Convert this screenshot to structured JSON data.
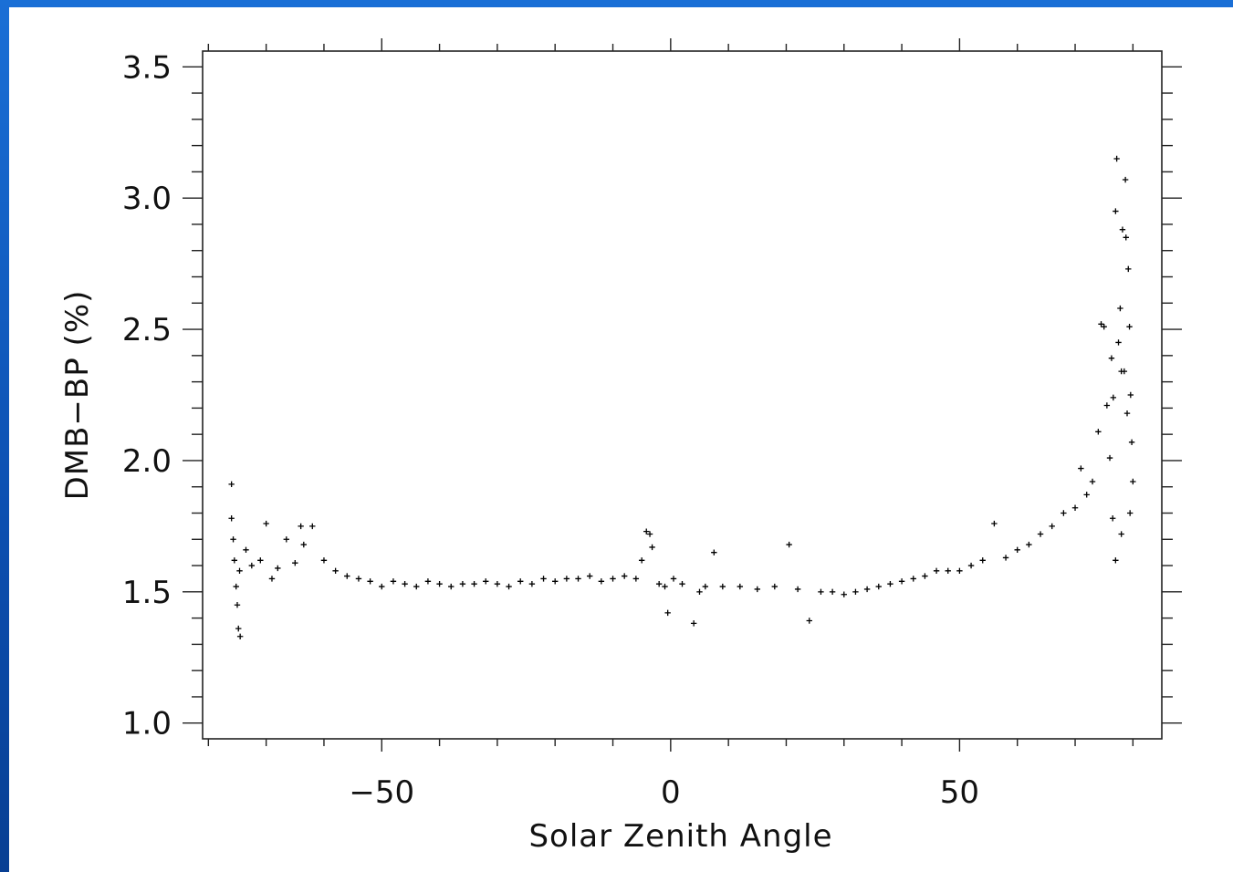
{
  "chart_data": {
    "type": "scatter",
    "title": "",
    "xlabel": "Solar Zenith Angle",
    "ylabel": "DMB−BP (%)",
    "xlim": [
      -81,
      85
    ],
    "ylim": [
      0.94,
      3.56
    ],
    "x_ticks": [
      -50,
      0,
      50
    ],
    "x_tick_labels": [
      "−50",
      "0",
      "50"
    ],
    "y_ticks": [
      1.0,
      1.5,
      2.0,
      2.5,
      3.0,
      3.5
    ],
    "y_tick_labels": [
      "1.0",
      "1.5",
      "2.0",
      "2.5",
      "3.0",
      "3.5"
    ],
    "marker": "plus",
    "marker_color": "#000000",
    "grid": false,
    "legend": "none",
    "series": [
      {
        "points": [
          [
            -76,
            1.91
          ],
          [
            -76,
            1.78
          ],
          [
            -75.5,
            1.62
          ],
          [
            -75,
            1.45
          ],
          [
            -74.8,
            1.36
          ],
          [
            -74.5,
            1.33
          ],
          [
            -75.7,
            1.7
          ],
          [
            -75.2,
            1.52
          ],
          [
            -74.6,
            1.58
          ],
          [
            -73.5,
            1.66
          ],
          [
            -72.5,
            1.6
          ],
          [
            -71,
            1.62
          ],
          [
            -70,
            1.76
          ],
          [
            -69,
            1.55
          ],
          [
            -68,
            1.59
          ],
          [
            -66.5,
            1.7
          ],
          [
            -65,
            1.61
          ],
          [
            -64,
            1.75
          ],
          [
            -63.5,
            1.68
          ],
          [
            -62,
            1.75
          ],
          [
            -60,
            1.62
          ],
          [
            -58,
            1.58
          ],
          [
            -56,
            1.56
          ],
          [
            -54,
            1.55
          ],
          [
            -52,
            1.54
          ],
          [
            -50,
            1.52
          ],
          [
            -48,
            1.54
          ],
          [
            -46,
            1.53
          ],
          [
            -44,
            1.52
          ],
          [
            -42,
            1.54
          ],
          [
            -40,
            1.53
          ],
          [
            -38,
            1.52
          ],
          [
            -36,
            1.53
          ],
          [
            -34,
            1.53
          ],
          [
            -32,
            1.54
          ],
          [
            -30,
            1.53
          ],
          [
            -28,
            1.52
          ],
          [
            -26,
            1.54
          ],
          [
            -24,
            1.53
          ],
          [
            -22,
            1.55
          ],
          [
            -20,
            1.54
          ],
          [
            -18,
            1.55
          ],
          [
            -16,
            1.55
          ],
          [
            -14,
            1.56
          ],
          [
            -12,
            1.54
          ],
          [
            -10,
            1.55
          ],
          [
            -8,
            1.56
          ],
          [
            -6,
            1.55
          ],
          [
            -4.2,
            1.73
          ],
          [
            -3.6,
            1.72
          ],
          [
            -3.2,
            1.67
          ],
          [
            -5,
            1.62
          ],
          [
            -2,
            1.53
          ],
          [
            -1,
            1.52
          ],
          [
            -0.5,
            1.42
          ],
          [
            0.5,
            1.55
          ],
          [
            2,
            1.53
          ],
          [
            4,
            1.38
          ],
          [
            5,
            1.5
          ],
          [
            6,
            1.52
          ],
          [
            7.5,
            1.65
          ],
          [
            9,
            1.52
          ],
          [
            12,
            1.52
          ],
          [
            15,
            1.51
          ],
          [
            18,
            1.52
          ],
          [
            20.5,
            1.68
          ],
          [
            22,
            1.51
          ],
          [
            24,
            1.39
          ],
          [
            26,
            1.5
          ],
          [
            28,
            1.5
          ],
          [
            30,
            1.49
          ],
          [
            32,
            1.5
          ],
          [
            34,
            1.51
          ],
          [
            36,
            1.52
          ],
          [
            38,
            1.53
          ],
          [
            40,
            1.54
          ],
          [
            42,
            1.55
          ],
          [
            44,
            1.56
          ],
          [
            46,
            1.58
          ],
          [
            48,
            1.58
          ],
          [
            50,
            1.58
          ],
          [
            52,
            1.6
          ],
          [
            54,
            1.62
          ],
          [
            56,
            1.76
          ],
          [
            58,
            1.63
          ],
          [
            60,
            1.66
          ],
          [
            62,
            1.68
          ],
          [
            64,
            1.72
          ],
          [
            66,
            1.75
          ],
          [
            68,
            1.8
          ],
          [
            70,
            1.82
          ],
          [
            71,
            1.97
          ],
          [
            72,
            1.87
          ],
          [
            73,
            1.92
          ],
          [
            74,
            2.11
          ],
          [
            74.5,
            2.52
          ],
          [
            75,
            2.51
          ],
          [
            75.5,
            2.21
          ],
          [
            76,
            2.01
          ],
          [
            76.3,
            2.39
          ],
          [
            76.6,
            2.24
          ],
          [
            77,
            2.95
          ],
          [
            77.2,
            3.15
          ],
          [
            77.5,
            2.45
          ],
          [
            77.8,
            2.58
          ],
          [
            78,
            2.34
          ],
          [
            78.2,
            2.88
          ],
          [
            78.5,
            2.34
          ],
          [
            78.7,
            3.07
          ],
          [
            78.8,
            2.85
          ],
          [
            79,
            2.18
          ],
          [
            79.2,
            2.73
          ],
          [
            79.4,
            2.51
          ],
          [
            79.6,
            2.25
          ],
          [
            79.8,
            2.07
          ],
          [
            80,
            1.92
          ],
          [
            79.5,
            1.8
          ],
          [
            78,
            1.72
          ],
          [
            77,
            1.62
          ],
          [
            76.5,
            1.78
          ]
        ]
      }
    ]
  }
}
